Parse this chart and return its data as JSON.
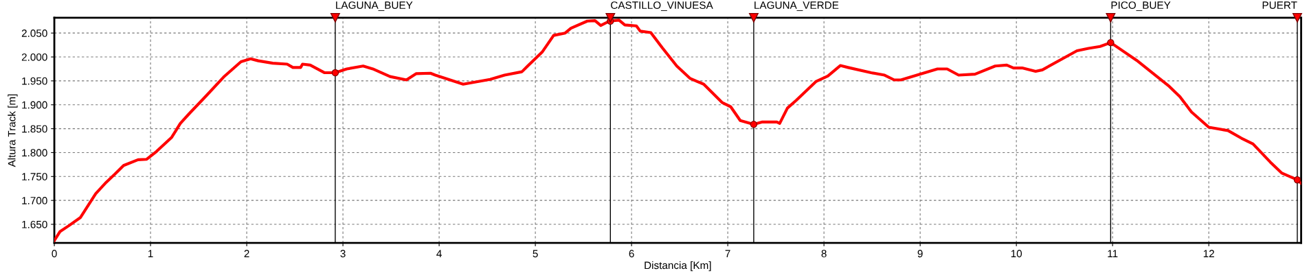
{
  "chart_data": {
    "type": "line",
    "xlabel": "Distancia [Km]",
    "ylabel": "Altura Track [m]",
    "xlim": [
      0,
      12.96
    ],
    "ylim": [
      1611,
      2082
    ],
    "xticks": [
      0,
      1,
      2,
      3,
      4,
      5,
      6,
      7,
      8,
      9,
      10,
      11,
      12
    ],
    "yticks": [
      {
        "value": 1650,
        "label": "1.650"
      },
      {
        "value": 1700,
        "label": "1.700"
      },
      {
        "value": 1750,
        "label": "1.750"
      },
      {
        "value": 1800,
        "label": "1.800"
      },
      {
        "value": 1850,
        "label": "1.850"
      },
      {
        "value": 1900,
        "label": "1.900"
      },
      {
        "value": 1950,
        "label": "1.950"
      },
      {
        "value": 2000,
        "label": "2.000"
      },
      {
        "value": 2050,
        "label": "2.050"
      }
    ],
    "grid": true,
    "marker": "none",
    "line_style": "solid",
    "series": [
      {
        "color": "#ff0000",
        "x": [
          0,
          0.06,
          0.15,
          0.27,
          0.43,
          0.54,
          0.63,
          0.72,
          0.87,
          0.96,
          1.06,
          1.22,
          1.31,
          1.4,
          1.58,
          1.76,
          1.94,
          2.04,
          2.12,
          2.27,
          2.42,
          2.48,
          2.56,
          2.58,
          2.66,
          2.81,
          2.92,
          3.04,
          3.21,
          3.31,
          3.49,
          3.66,
          3.76,
          3.91,
          3.96,
          4.25,
          4.53,
          4.68,
          4.86,
          4.92,
          5.07,
          5.19,
          5.31,
          5.37,
          5.54,
          5.62,
          5.68,
          5.77,
          5.87,
          5.93,
          6.05,
          6.09,
          6.2,
          6.32,
          6.47,
          6.61,
          6.75,
          6.94,
          7.03,
          7.13,
          7.27,
          7.36,
          7.51,
          7.54,
          7.62,
          7.71,
          7.83,
          7.92,
          8.04,
          8.17,
          8.25,
          8.49,
          8.63,
          8.73,
          8.8,
          9.18,
          9.28,
          9.4,
          9.57,
          9.78,
          9.9,
          9.97,
          10.06,
          10.2,
          10.27,
          10.63,
          10.75,
          10.87,
          10.98,
          11.25,
          11.58,
          11.7,
          11.82,
          12.0,
          12.2,
          12.34,
          12.46,
          12.64,
          12.76,
          12.92,
          12.96
        ],
        "values": [
          1616,
          1635,
          1647,
          1664,
          1714,
          1738,
          1755,
          1773,
          1785,
          1786,
          1802,
          1832,
          1861,
          1881,
          1919,
          1958,
          1990,
          1996,
          1992,
          1987,
          1985,
          1978,
          1978,
          1985,
          1983,
          1967,
          1967,
          1975,
          1981,
          1975,
          1959,
          1952,
          1965,
          1966,
          1962,
          1943,
          1953,
          1962,
          1969,
          1981,
          2010,
          2045,
          2050,
          2060,
          2075,
          2076,
          2066,
          2075,
          2077,
          2067,
          2065,
          2054,
          2051,
          2019,
          1981,
          1955,
          1943,
          1905,
          1896,
          1867,
          1859,
          1864,
          1864,
          1861,
          1893,
          1909,
          1932,
          1949,
          1960,
          1982,
          1978,
          1967,
          1962,
          1952,
          1952,
          1975,
          1975,
          1962,
          1964,
          1981,
          1983,
          1977,
          1977,
          1970,
          1973,
          2013,
          2018,
          2022,
          2030,
          1993,
          1940,
          1917,
          1885,
          1853,
          1846,
          1830,
          1818,
          1780,
          1757,
          1743,
          1736
        ]
      },
      {
        "type": "scatter",
        "color": "#ff0000",
        "marker": "circle",
        "x": [
          2.92,
          5.78,
          7.27,
          10.98,
          12.92
        ],
        "values": [
          1967,
          2075,
          1859,
          2030,
          1743
        ]
      }
    ],
    "ref_lines": [
      {
        "axis": "x",
        "value": 2.92,
        "label": "LAGUNA_BUEY",
        "color": "#000000"
      },
      {
        "axis": "x",
        "value": 5.78,
        "label": "CASTILLO_VINUESA",
        "color": "#000000"
      },
      {
        "axis": "x",
        "value": 7.27,
        "label": "LAGUNA_VERDE",
        "color": "#000000"
      },
      {
        "axis": "x",
        "value": 10.98,
        "label": "PICO_BUEY",
        "color": "#000000"
      },
      {
        "axis": "x",
        "value": 12.92,
        "label": "PUERT",
        "color": "#000000"
      }
    ]
  }
}
